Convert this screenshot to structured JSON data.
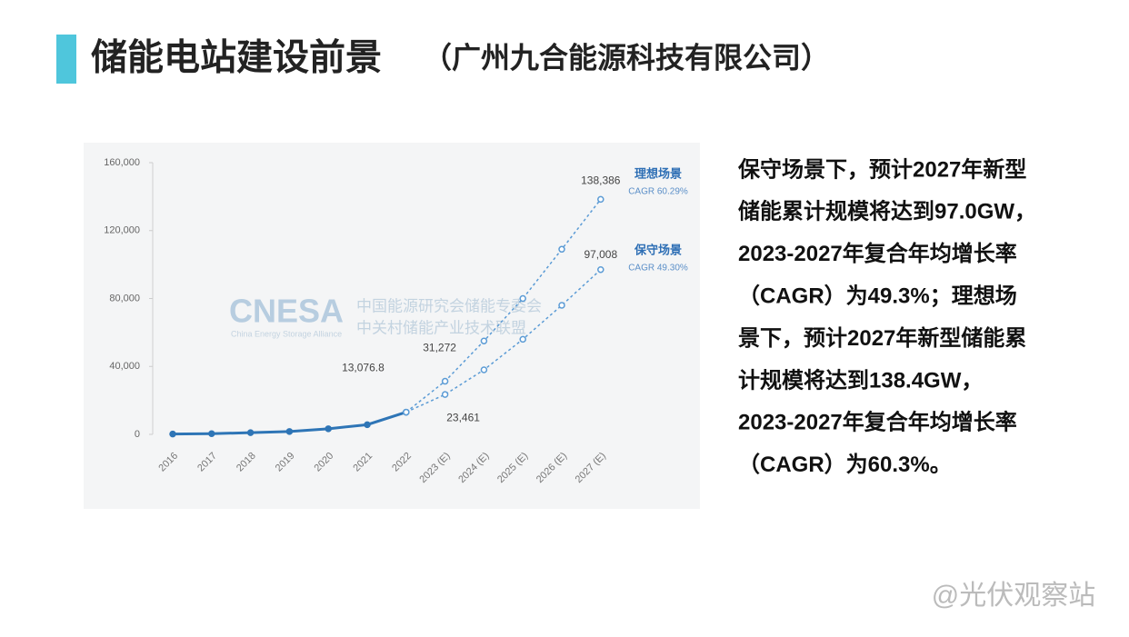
{
  "slide": {
    "title": "储能电站建设前景",
    "subtitle": "（广州九合能源科技有限公司）",
    "text_lines": [
      "保守场景下，预计2027年新型",
      "储能累计规模将达到97.0GW，",
      "2023-2027年复合年均增长率",
      "（CAGR）为49.3%；理想场",
      "景下，预计2027年新型储能累",
      "计规模将达到138.4GW，",
      "2023-2027年复合年均增长率",
      "（CAGR）为60.3%。"
    ],
    "watermark": "@光伏观察站"
  },
  "chart_data": {
    "type": "line",
    "categories": [
      "2016",
      "2017",
      "2018",
      "2019",
      "2020",
      "2021",
      "2022",
      "2023 (E)",
      "2024 (E)",
      "2025 (E)",
      "2026 (E)",
      "2027 (E)"
    ],
    "series": [
      {
        "color": "#2e75b6",
        "values": [
          200,
          400,
          1000,
          1700,
          3300,
          5700,
          13076.8,
          null,
          null,
          null,
          null,
          null
        ],
        "value_labels": [
          null,
          null,
          null,
          null,
          null,
          null,
          "13,076.8",
          null,
          null,
          null,
          null,
          null
        ]
      },
      {
        "name": "理想场景",
        "cagr": "CAGR 60.29%",
        "color": "#5b9bd5",
        "values": [
          null,
          null,
          null,
          null,
          null,
          null,
          13076.8,
          31272,
          55000,
          80000,
          109000,
          138386
        ],
        "value_labels": [
          null,
          null,
          null,
          null,
          null,
          null,
          null,
          "31,272",
          null,
          null,
          null,
          "138,386"
        ]
      },
      {
        "name": "保守场景",
        "cagr": "CAGR 49.30%",
        "color": "#5b9bd5",
        "values": [
          null,
          null,
          null,
          null,
          null,
          null,
          13076.8,
          23461,
          38000,
          56000,
          76000,
          97008
        ],
        "value_labels": [
          null,
          null,
          null,
          null,
          null,
          null,
          null,
          "23,461",
          null,
          null,
          null,
          "97,008"
        ]
      }
    ],
    "ylim": [
      0,
      160000
    ],
    "yticks": [
      0,
      {
        "value": 40000,
        "label": "40,000"
      },
      {
        "value": 80000,
        "label": "80,000"
      },
      {
        "value": 120000,
        "label": "120,000"
      },
      {
        "value": 160000,
        "label": "160,000"
      }
    ],
    "watermark": {
      "logo": "CNESA",
      "org1": "中国能源研究会储能专委会",
      "org2": "中关村储能产业技术联盟",
      "org_en": "China Energy Storage Alliance"
    }
  }
}
